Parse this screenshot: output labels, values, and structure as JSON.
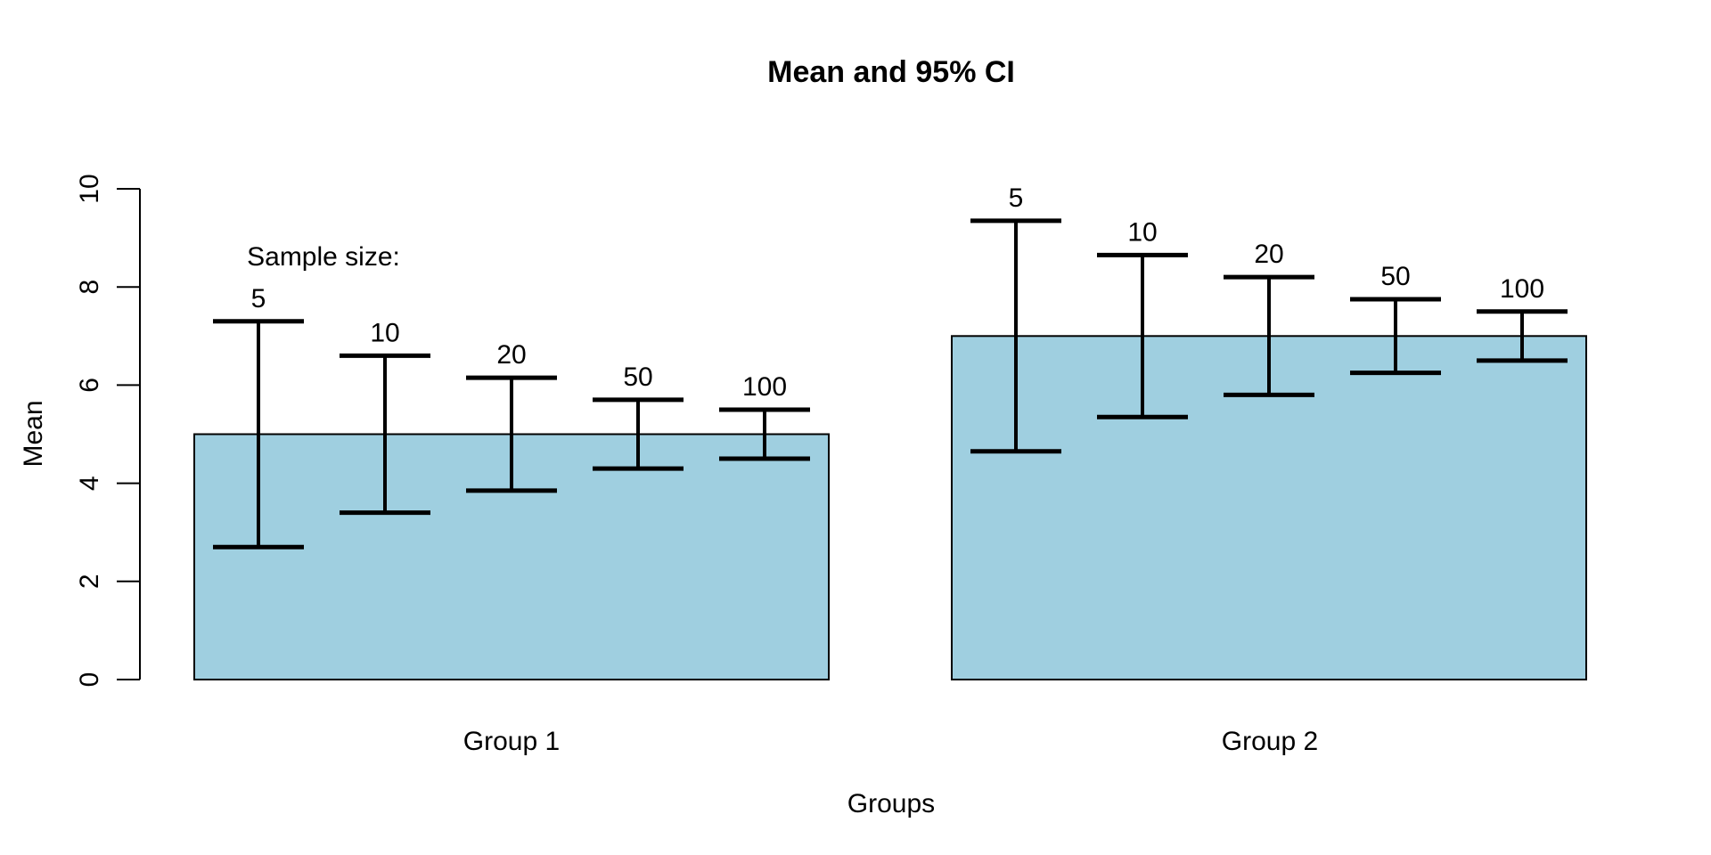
{
  "chart_data": {
    "type": "bar",
    "title": "Mean and 95% CI",
    "xlabel": "Groups",
    "ylabel": "Mean",
    "annotation": "Sample size:",
    "categories": [
      "Group 1",
      "Group 2"
    ],
    "values": [
      5,
      7
    ],
    "ylim": [
      0,
      10
    ],
    "yticks": [
      0,
      2,
      4,
      6,
      8,
      10
    ],
    "grid": false,
    "legend": "none",
    "bar_fill": "#9FCFE0",
    "bar_edge": "#000000",
    "error_bar_color": "#000000",
    "sample_sizes": [
      5,
      10,
      20,
      50,
      100
    ],
    "error_bars": [
      {
        "category": "Group 1",
        "mean": 5,
        "intervals": [
          {
            "n": 5,
            "lower": 2.7,
            "upper": 7.3
          },
          {
            "n": 10,
            "lower": 3.4,
            "upper": 6.6
          },
          {
            "n": 20,
            "lower": 3.85,
            "upper": 6.15
          },
          {
            "n": 50,
            "lower": 4.3,
            "upper": 5.7
          },
          {
            "n": 100,
            "lower": 4.5,
            "upper": 5.5
          }
        ]
      },
      {
        "category": "Group 2",
        "mean": 7,
        "intervals": [
          {
            "n": 5,
            "lower": 4.65,
            "upper": 9.35
          },
          {
            "n": 10,
            "lower": 5.35,
            "upper": 8.65
          },
          {
            "n": 20,
            "lower": 5.8,
            "upper": 8.2
          },
          {
            "n": 50,
            "lower": 6.25,
            "upper": 7.75
          },
          {
            "n": 100,
            "lower": 6.5,
            "upper": 7.5
          }
        ]
      }
    ]
  }
}
